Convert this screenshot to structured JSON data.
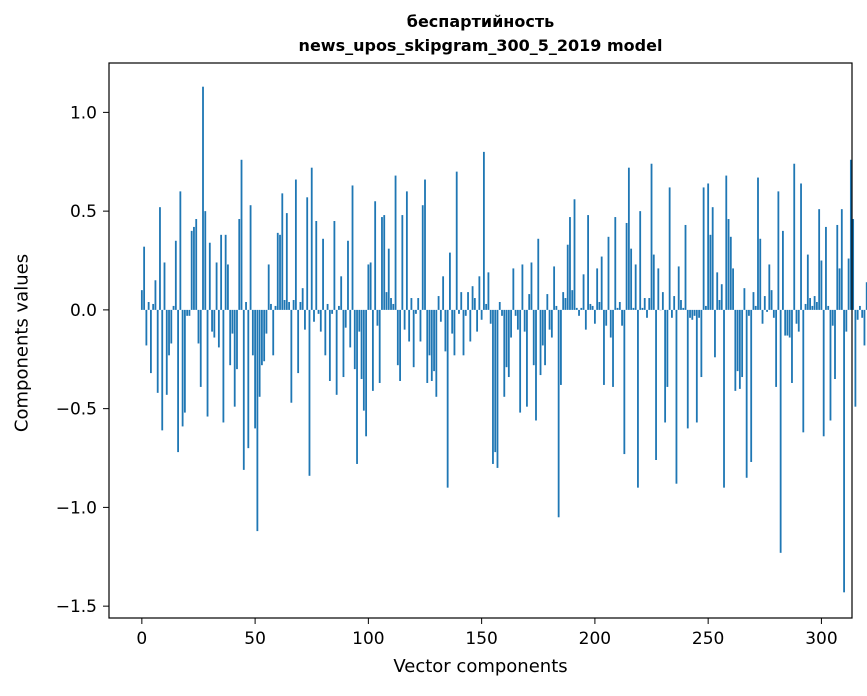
{
  "chart_data": {
    "type": "bar",
    "title": "беспартийность",
    "subtitle": "news_upos_skipgram_300_5_2019 model",
    "xlabel": "Vector components",
    "ylabel": "Components values",
    "xlim": [
      -14.5,
      313.5
    ],
    "ylim": [
      -1.56,
      1.25
    ],
    "xticks": [
      0,
      50,
      100,
      150,
      200,
      250,
      300
    ],
    "yticks": [
      -1.5,
      -1.0,
      -0.5,
      0.0,
      0.5,
      1.0
    ],
    "xtick_labels": [
      "0",
      "50",
      "100",
      "150",
      "200",
      "250",
      "300"
    ],
    "ytick_labels": [
      "−1.5",
      "−1.0",
      "−0.5",
      "0.0",
      "0.5",
      "1.0"
    ],
    "bar_color": "#1f77b4",
    "grid": false,
    "values": [
      0.1,
      0.32,
      -0.18,
      0.04,
      -0.32,
      0.03,
      0.15,
      -0.42,
      0.52,
      -0.61,
      0.24,
      -0.43,
      -0.23,
      -0.17,
      0.02,
      0.35,
      -0.72,
      0.6,
      -0.59,
      -0.52,
      -0.03,
      -0.03,
      0.4,
      0.42,
      0.46,
      -0.17,
      -0.39,
      1.13,
      0.5,
      -0.54,
      0.34,
      -0.11,
      -0.14,
      0.24,
      -0.19,
      0.38,
      -0.57,
      0.38,
      0.23,
      -0.28,
      -0.12,
      -0.49,
      -0.3,
      0.46,
      0.76,
      -0.81,
      0.04,
      -0.7,
      0.53,
      -0.23,
      -0.6,
      -1.12,
      -0.44,
      -0.28,
      -0.26,
      -0.12,
      0.23,
      0.03,
      -0.23,
      0.02,
      0.39,
      0.38,
      0.59,
      0.05,
      0.49,
      0.04,
      -0.47,
      0.05,
      0.66,
      -0.32,
      0.04,
      0.11,
      -0.1,
      0.57,
      -0.84,
      0.72,
      -0.06,
      0.45,
      -0.02,
      -0.11,
      0.36,
      -0.23,
      0.03,
      -0.36,
      -0.02,
      0.45,
      -0.43,
      0.02,
      0.17,
      -0.34,
      -0.09,
      0.35,
      -0.19,
      0.63,
      -0.3,
      -0.78,
      -0.11,
      -0.35,
      -0.51,
      -0.64,
      0.23,
      0.24,
      -0.41,
      0.55,
      -0.08,
      -0.37,
      0.47,
      0.48,
      0.09,
      0.31,
      0.06,
      0.03,
      0.68,
      -0.28,
      -0.36,
      0.48,
      -0.1,
      0.6,
      -0.16,
      0.06,
      -0.29,
      -0.02,
      0.06,
      -0.16,
      0.53,
      0.66,
      -0.37,
      -0.23,
      -0.36,
      -0.31,
      -0.44,
      0.07,
      -0.06,
      0.17,
      -0.21,
      -0.9,
      0.29,
      -0.12,
      -0.23,
      0.7,
      -0.02,
      0.09,
      -0.23,
      -0.03,
      0.09,
      -0.16,
      0.12,
      0.06,
      -0.11,
      0.17,
      -0.05,
      0.8,
      0.03,
      0.19,
      -0.07,
      -0.78,
      -0.72,
      -0.8,
      0.04,
      -0.03,
      -0.44,
      -0.29,
      -0.34,
      -0.14,
      0.21,
      -0.03,
      -0.1,
      -0.52,
      0.23,
      -0.11,
      -0.49,
      0.08,
      0.24,
      -0.28,
      -0.56,
      0.36,
      -0.33,
      -0.18,
      -0.28,
      0.08,
      -0.1,
      -0.14,
      0.22,
      0.02,
      -1.05,
      -0.38,
      0.09,
      0.06,
      0.33,
      0.47,
      0.1,
      0.56,
      0.01,
      -0.03,
      0.01,
      0.18,
      -0.1,
      0.48,
      0.03,
      0.02,
      -0.07,
      0.21,
      0.04,
      0.27,
      -0.38,
      -0.08,
      0.37,
      -0.14,
      -0.39,
      0.47,
      0.01,
      0.04,
      -0.08,
      -0.73,
      0.44,
      0.72,
      0.31,
      0.01,
      0.23,
      -0.9,
      0.5,
      0.01,
      0.06,
      -0.04,
      0.06,
      0.74,
      0.28,
      -0.76,
      0.21,
      0.0,
      0.09,
      -0.57,
      -0.39,
      0.62,
      -0.04,
      0.07,
      -0.88,
      0.22,
      0.05,
      0.01,
      0.43,
      -0.6,
      -0.04,
      -0.05,
      -0.03,
      -0.57,
      -0.04,
      -0.34,
      0.62,
      0.02,
      0.64,
      0.38,
      0.52,
      -0.24,
      0.19,
      0.05,
      0.13,
      -0.9,
      0.68,
      0.46,
      0.37,
      0.21,
      -0.41,
      -0.31,
      -0.4,
      -0.34,
      0.11,
      -0.85,
      -0.03,
      -0.77,
      0.09,
      0.02,
      0.67,
      0.36,
      -0.07,
      0.07,
      -0.01,
      0.23,
      0.1,
      -0.04,
      -0.39,
      0.6,
      -1.23,
      0.4,
      -0.13,
      -0.13,
      -0.14,
      -0.37,
      0.74,
      -0.07,
      -0.11,
      0.64,
      -0.62,
      0.03,
      0.28,
      0.06,
      0.02,
      0.07,
      0.04,
      0.51,
      0.25,
      -0.64,
      0.42,
      0.02,
      -0.56,
      -0.08,
      -0.35,
      0.43,
      0.21,
      0.51,
      -1.43,
      -0.11,
      0.26,
      0.76,
      0.46,
      -0.49,
      -0.05,
      0.02,
      -0.04,
      -0.18,
      0.14
    ]
  }
}
